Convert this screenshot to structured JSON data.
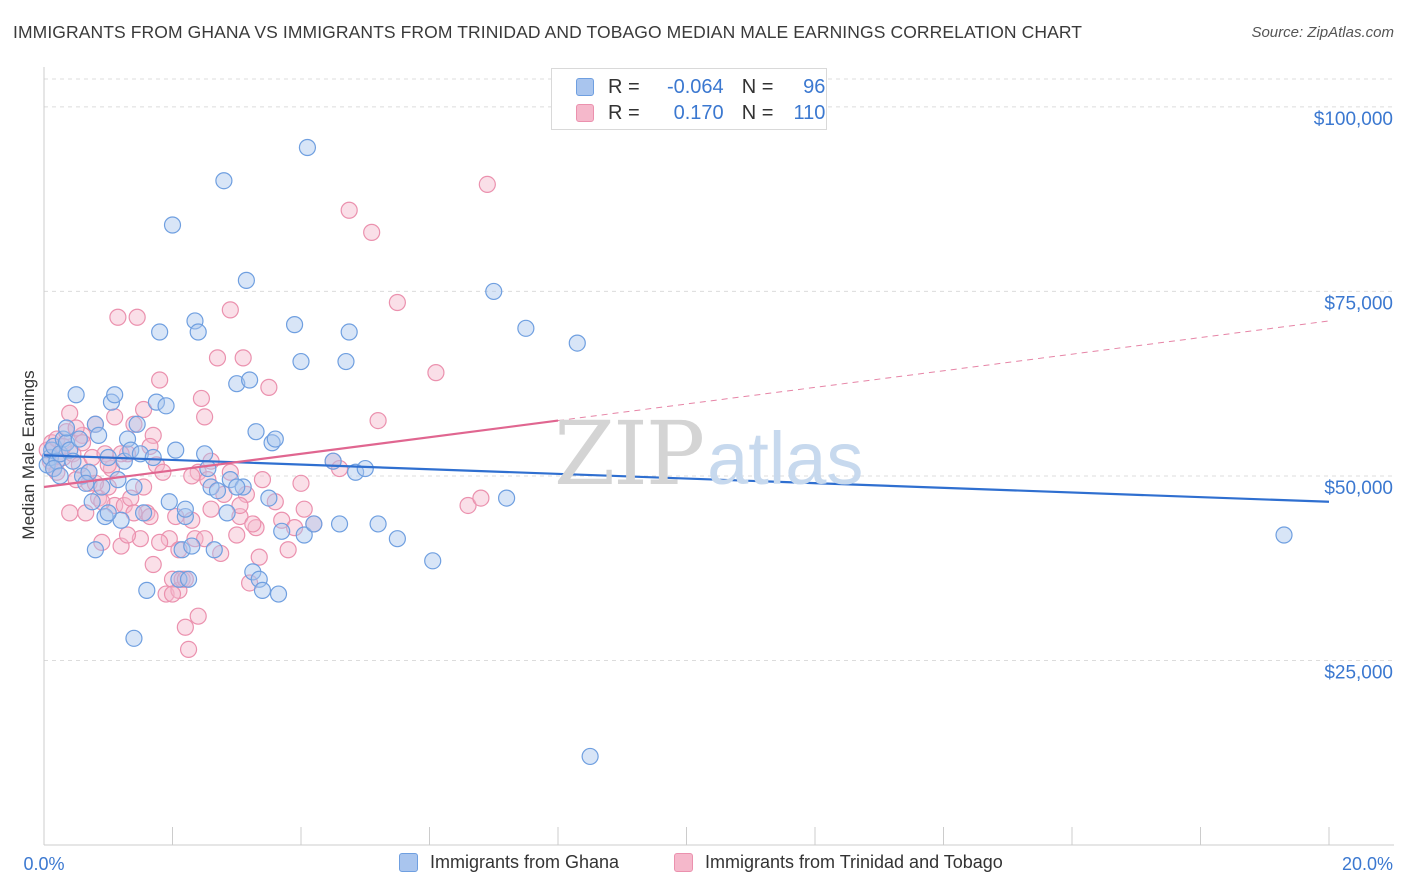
{
  "title": "IMMIGRANTS FROM GHANA VS IMMIGRANTS FROM TRINIDAD AND TOBAGO MEDIAN MALE EARNINGS CORRELATION CHART",
  "source": "Source: ZipAtlas.com",
  "watermark": {
    "zip": "ZIP",
    "atlas": "atlas"
  },
  "legend": {
    "rows": [
      {
        "r_label": "R =",
        "r_value": "-0.064",
        "n_label": "N =",
        "n_value": "96"
      },
      {
        "r_label": "R =",
        "r_value": "0.170",
        "n_label": "N =",
        "n_value": "110"
      }
    ]
  },
  "bottom_legend": [
    "Immigrants from Ghana",
    "Immigrants from Trinidad and Tobago"
  ],
  "colors": {
    "ghana_fill": "#a9c5ee",
    "ghana_stroke": "#6f9fe0",
    "ghana_line": "#2f6fd0",
    "tt_fill": "#f5b8cb",
    "tt_stroke": "#eb91ae",
    "tt_line": "#e06690",
    "tick_text": "#3b78d0",
    "grid": "#dcdcdc"
  },
  "chart_data": {
    "type": "scatter",
    "ylabel": "Median Male Earnings",
    "x_tick_labels": [
      "0.0%",
      "20.0%"
    ],
    "y_tick_labels": [
      "$25,000",
      "$50,000",
      "$75,000",
      "$100,000"
    ],
    "xlim": [
      0,
      20
    ],
    "ylim": [
      0,
      105000
    ],
    "y_ticks": [
      25000,
      50000,
      75000,
      100000
    ],
    "series": [
      {
        "name": "Immigrants from Ghana",
        "trend": {
          "x0": 0,
          "y0": 52800,
          "x1": 20,
          "y1": 46500,
          "solid_until": 20
        },
        "points": [
          [
            0.05,
            51500
          ],
          [
            0.1,
            52500
          ],
          [
            0.12,
            53500
          ],
          [
            0.15,
            54000
          ],
          [
            0.2,
            52000
          ],
          [
            0.25,
            53000
          ],
          [
            0.3,
            55000
          ],
          [
            0.35,
            54500
          ],
          [
            0.4,
            53500
          ],
          [
            0.45,
            52000
          ],
          [
            0.5,
            61000
          ],
          [
            0.55,
            55000
          ],
          [
            0.6,
            50000
          ],
          [
            0.7,
            50500
          ],
          [
            0.75,
            46500
          ],
          [
            0.8,
            57000
          ],
          [
            0.85,
            55500
          ],
          [
            0.9,
            48500
          ],
          [
            0.95,
            44500
          ],
          [
            1.0,
            52500
          ],
          [
            1.05,
            60000
          ],
          [
            1.1,
            61000
          ],
          [
            1.15,
            49500
          ],
          [
            1.2,
            44000
          ],
          [
            1.25,
            52000
          ],
          [
            1.3,
            55000
          ],
          [
            1.35,
            53500
          ],
          [
            1.4,
            48500
          ],
          [
            1.45,
            57000
          ],
          [
            1.5,
            53000
          ],
          [
            1.55,
            45000
          ],
          [
            1.6,
            34500
          ],
          [
            1.7,
            52500
          ],
          [
            1.75,
            60000
          ],
          [
            1.8,
            69500
          ],
          [
            1.9,
            59500
          ],
          [
            1.95,
            46500
          ],
          [
            2.0,
            84000
          ],
          [
            2.05,
            53500
          ],
          [
            2.1,
            36000
          ],
          [
            2.15,
            40000
          ],
          [
            2.2,
            44500
          ],
          [
            2.25,
            36000
          ],
          [
            2.3,
            40500
          ],
          [
            2.35,
            71000
          ],
          [
            2.4,
            69500
          ],
          [
            2.5,
            53000
          ],
          [
            2.55,
            51000
          ],
          [
            2.6,
            48500
          ],
          [
            2.65,
            40000
          ],
          [
            2.7,
            48000
          ],
          [
            2.8,
            90000
          ],
          [
            2.85,
            45000
          ],
          [
            2.9,
            49500
          ],
          [
            3.0,
            62500
          ],
          [
            3.1,
            48500
          ],
          [
            3.15,
            76500
          ],
          [
            3.2,
            63000
          ],
          [
            3.25,
            37000
          ],
          [
            3.3,
            56000
          ],
          [
            3.35,
            36000
          ],
          [
            3.4,
            34500
          ],
          [
            3.5,
            47000
          ],
          [
            3.55,
            54500
          ],
          [
            3.6,
            55000
          ],
          [
            3.65,
            34000
          ],
          [
            3.7,
            42500
          ],
          [
            3.9,
            70500
          ],
          [
            4.0,
            65500
          ],
          [
            4.05,
            42000
          ],
          [
            4.1,
            94500
          ],
          [
            4.2,
            43500
          ],
          [
            4.5,
            52000
          ],
          [
            4.6,
            43500
          ],
          [
            4.7,
            65500
          ],
          [
            4.75,
            69500
          ],
          [
            4.85,
            50500
          ],
          [
            5.0,
            51000
          ],
          [
            5.2,
            43500
          ],
          [
            5.5,
            41500
          ],
          [
            6.05,
            38500
          ],
          [
            7.0,
            75000
          ],
          [
            7.2,
            47000
          ],
          [
            7.5,
            70000
          ],
          [
            8.3,
            68000
          ],
          [
            8.5,
            12000
          ],
          [
            19.3,
            42000
          ],
          [
            1.4,
            28000
          ],
          [
            0.65,
            49000
          ],
          [
            1.0,
            45000
          ],
          [
            0.35,
            56500
          ],
          [
            0.8,
            40000
          ],
          [
            2.2,
            45500
          ],
          [
            3.0,
            48500
          ],
          [
            0.15,
            51000
          ],
          [
            0.25,
            50000
          ]
        ]
      },
      {
        "name": "Immigrants from Trinidad and Tobago",
        "trend": {
          "x0": 0,
          "y0": 48500,
          "x1": 20,
          "y1": 71000,
          "solid_until": 8.0
        },
        "points": [
          [
            0.05,
            53500
          ],
          [
            0.1,
            52000
          ],
          [
            0.12,
            54500
          ],
          [
            0.15,
            51000
          ],
          [
            0.2,
            55000
          ],
          [
            0.25,
            53000
          ],
          [
            0.3,
            52500
          ],
          [
            0.35,
            56000
          ],
          [
            0.4,
            58500
          ],
          [
            0.45,
            53000
          ],
          [
            0.5,
            49500
          ],
          [
            0.55,
            51500
          ],
          [
            0.6,
            55500
          ],
          [
            0.65,
            45000
          ],
          [
            0.7,
            50500
          ],
          [
            0.75,
            52500
          ],
          [
            0.8,
            57000
          ],
          [
            0.85,
            47000
          ],
          [
            0.9,
            41000
          ],
          [
            0.95,
            53000
          ],
          [
            1.0,
            48500
          ],
          [
            1.05,
            51000
          ],
          [
            1.1,
            46000
          ],
          [
            1.15,
            71500
          ],
          [
            1.2,
            40500
          ],
          [
            1.25,
            46000
          ],
          [
            1.3,
            53000
          ],
          [
            1.35,
            47000
          ],
          [
            1.4,
            57000
          ],
          [
            1.45,
            71500
          ],
          [
            1.5,
            41500
          ],
          [
            1.55,
            48500
          ],
          [
            1.6,
            45000
          ],
          [
            1.65,
            44500
          ],
          [
            1.7,
            55500
          ],
          [
            1.75,
            51500
          ],
          [
            1.8,
            63000
          ],
          [
            1.85,
            50500
          ],
          [
            1.9,
            34000
          ],
          [
            1.95,
            41500
          ],
          [
            2.0,
            36000
          ],
          [
            2.05,
            44500
          ],
          [
            2.1,
            34500
          ],
          [
            2.15,
            36000
          ],
          [
            2.2,
            29500
          ],
          [
            2.25,
            26500
          ],
          [
            2.3,
            44000
          ],
          [
            2.35,
            41500
          ],
          [
            2.4,
            50500
          ],
          [
            2.45,
            60500
          ],
          [
            2.5,
            58000
          ],
          [
            2.55,
            49500
          ],
          [
            2.6,
            52000
          ],
          [
            2.7,
            66000
          ],
          [
            2.8,
            47500
          ],
          [
            2.9,
            72500
          ],
          [
            3.0,
            42000
          ],
          [
            3.05,
            44500
          ],
          [
            3.1,
            66000
          ],
          [
            3.15,
            47500
          ],
          [
            3.2,
            35500
          ],
          [
            3.3,
            43000
          ],
          [
            3.35,
            39000
          ],
          [
            3.4,
            49500
          ],
          [
            3.5,
            62000
          ],
          [
            3.6,
            46500
          ],
          [
            3.7,
            44000
          ],
          [
            3.8,
            40000
          ],
          [
            3.9,
            43000
          ],
          [
            4.0,
            49000
          ],
          [
            4.05,
            45500
          ],
          [
            4.2,
            43500
          ],
          [
            4.5,
            52000
          ],
          [
            4.6,
            51000
          ],
          [
            4.75,
            86000
          ],
          [
            5.1,
            83000
          ],
          [
            5.2,
            57500
          ],
          [
            5.5,
            73500
          ],
          [
            6.1,
            64000
          ],
          [
            6.6,
            46000
          ],
          [
            6.8,
            47000
          ],
          [
            6.9,
            89500
          ],
          [
            0.2,
            50500
          ],
          [
            0.3,
            54000
          ],
          [
            0.6,
            54500
          ],
          [
            0.7,
            49000
          ],
          [
            0.9,
            46500
          ],
          [
            1.0,
            51500
          ],
          [
            1.2,
            53000
          ],
          [
            1.3,
            42000
          ],
          [
            1.55,
            59000
          ],
          [
            1.65,
            54000
          ],
          [
            1.8,
            41000
          ],
          [
            2.0,
            34000
          ],
          [
            2.1,
            40000
          ],
          [
            2.3,
            50000
          ],
          [
            2.5,
            41500
          ],
          [
            2.6,
            45500
          ],
          [
            2.75,
            39500
          ],
          [
            2.9,
            50500
          ],
          [
            3.05,
            46000
          ],
          [
            3.25,
            43500
          ],
          [
            0.4,
            45000
          ],
          [
            0.5,
            56500
          ],
          [
            0.8,
            49000
          ],
          [
            1.1,
            58000
          ],
          [
            1.4,
            45000
          ],
          [
            1.7,
            38000
          ],
          [
            2.2,
            36000
          ],
          [
            2.4,
            31000
          ]
        ]
      }
    ]
  }
}
